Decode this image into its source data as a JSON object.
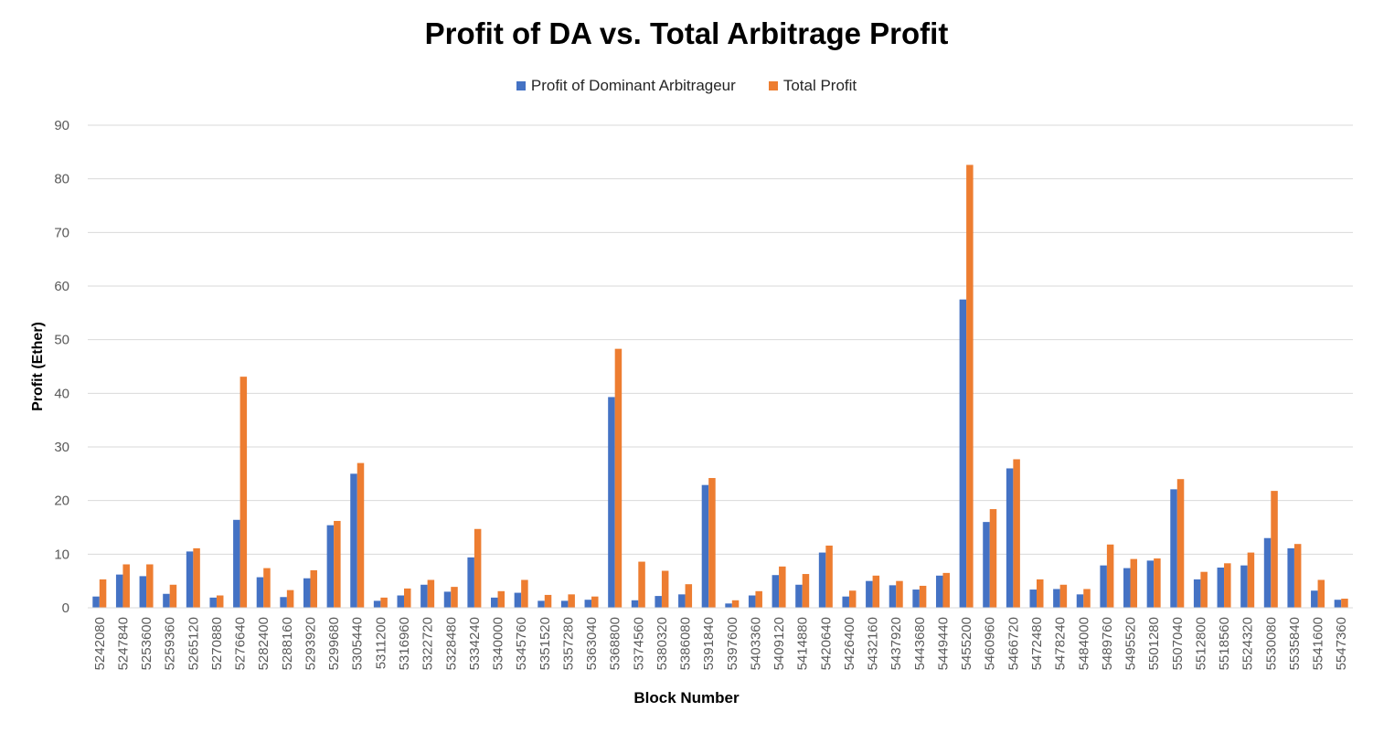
{
  "chart_data": {
    "type": "bar",
    "title": "Profit of DA vs. Total Arbitrage Profit",
    "xlabel": "Block Number",
    "ylabel": "Profit (Ether)",
    "ylim": [
      0,
      90
    ],
    "yticks": [
      "0",
      "10",
      "20",
      "30",
      "40",
      "50",
      "60",
      "70",
      "80",
      "90"
    ],
    "grid": true,
    "legend_position": "top",
    "categories": [
      "5242080",
      "5247840",
      "5253600",
      "5259360",
      "5265120",
      "5270880",
      "5276640",
      "5282400",
      "5288160",
      "5293920",
      "5299680",
      "5305440",
      "5311200",
      "5316960",
      "5322720",
      "5328480",
      "5334240",
      "5340000",
      "5345760",
      "5351520",
      "5357280",
      "5363040",
      "5368800",
      "5374560",
      "5380320",
      "5386080",
      "5391840",
      "5397600",
      "5403360",
      "5409120",
      "5414880",
      "5420640",
      "5426400",
      "5432160",
      "5437920",
      "5443680",
      "5449440",
      "5455200",
      "5460960",
      "5466720",
      "5472480",
      "5478240",
      "5484000",
      "5489760",
      "5495520",
      "5501280",
      "5507040",
      "5512800",
      "5518560",
      "5524320",
      "5530080",
      "5535840",
      "5541600",
      "5547360"
    ],
    "series": [
      {
        "name": "Profit of Dominant Arbitrageur",
        "color": "#4472C4",
        "values": [
          2.1,
          6.2,
          5.9,
          2.6,
          10.5,
          1.9,
          16.4,
          5.7,
          2.0,
          5.5,
          15.4,
          25.0,
          1.3,
          2.3,
          4.3,
          3.0,
          9.4,
          1.9,
          2.8,
          1.3,
          1.3,
          1.5,
          39.3,
          1.4,
          2.2,
          2.5,
          22.9,
          0.8,
          2.3,
          6.1,
          4.3,
          10.3,
          2.1,
          5.0,
          4.2,
          3.4,
          6.0,
          57.5,
          16.0,
          26.0,
          3.4,
          3.5,
          2.5,
          7.9,
          7.4,
          8.8,
          22.1,
          5.3,
          7.5,
          7.9,
          13.0,
          11.1,
          3.2,
          1.5
        ]
      },
      {
        "name": "Total Profit",
        "color": "#ED7D31",
        "values": [
          5.3,
          8.1,
          8.1,
          4.3,
          11.1,
          2.3,
          43.1,
          7.4,
          3.3,
          7.0,
          16.2,
          27.0,
          1.9,
          3.6,
          5.2,
          3.9,
          14.7,
          3.1,
          5.2,
          2.4,
          2.5,
          2.1,
          48.3,
          8.6,
          6.9,
          4.4,
          24.2,
          1.4,
          3.1,
          7.7,
          6.3,
          11.6,
          3.2,
          6.0,
          5.0,
          4.1,
          6.5,
          82.6,
          18.4,
          27.7,
          5.3,
          4.3,
          3.5,
          11.8,
          9.1,
          9.2,
          24.0,
          6.7,
          8.3,
          10.3,
          21.8,
          11.9,
          5.2,
          1.7
        ]
      }
    ]
  }
}
